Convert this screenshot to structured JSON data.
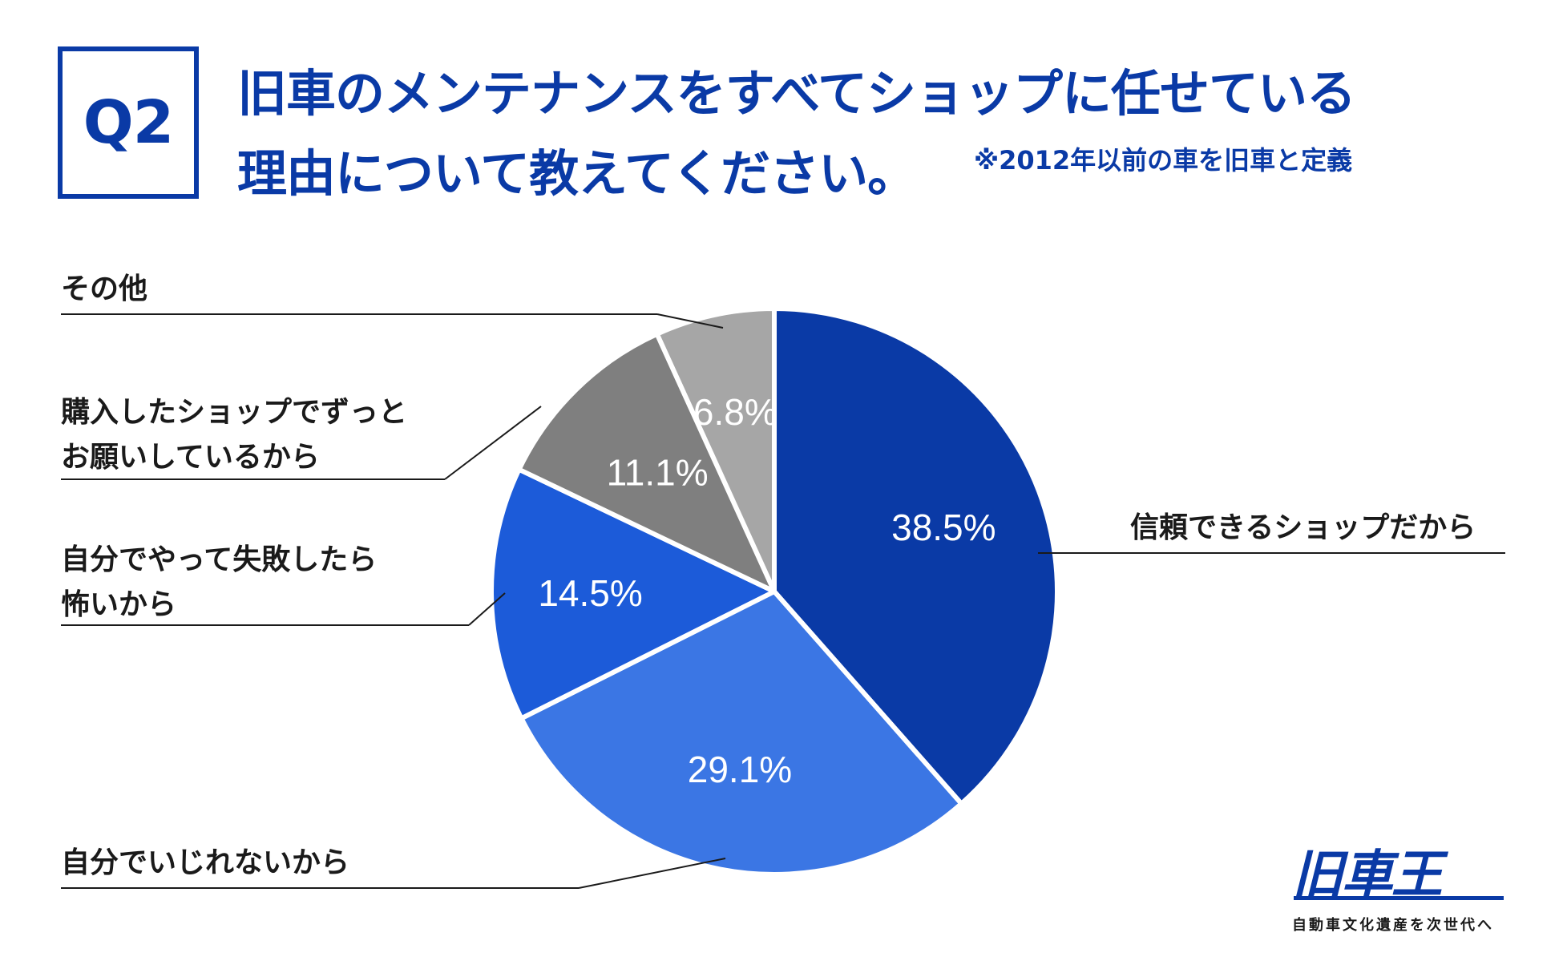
{
  "header": {
    "badge": "Q2",
    "title_line1": "旧車のメンテナンスをすべてショップに任せている",
    "title_line2": "理由について教えてください。",
    "note": "※2012年以前の車を旧車と定義"
  },
  "chart_data": {
    "type": "pie",
    "start_angle_deg": 0,
    "direction": "clockwise",
    "slices": [
      {
        "label": [
          "信頼できるショップだから"
        ],
        "value": 38.5,
        "display": "38.5%",
        "color": "#0a3aa6"
      },
      {
        "label": [
          "自分でいじれないから"
        ],
        "value": 29.1,
        "display": "29.1%",
        "color": "#3b76e4"
      },
      {
        "label": [
          "自分でやって失敗したら",
          "怖いから"
        ],
        "value": 14.5,
        "display": "14.5%",
        "color": "#1c5bd9"
      },
      {
        "label": [
          "購入したショップでずっと",
          "お願いしているから"
        ],
        "value": 11.1,
        "display": "11.1%",
        "color": "#7f7f7f"
      },
      {
        "label": [
          "その他"
        ],
        "value": 6.8,
        "display": "6.8%",
        "color": "#a6a6a6"
      }
    ]
  },
  "logo": {
    "text": "旧車王",
    "tagline": "自動車文化遺産を次世代へ"
  }
}
